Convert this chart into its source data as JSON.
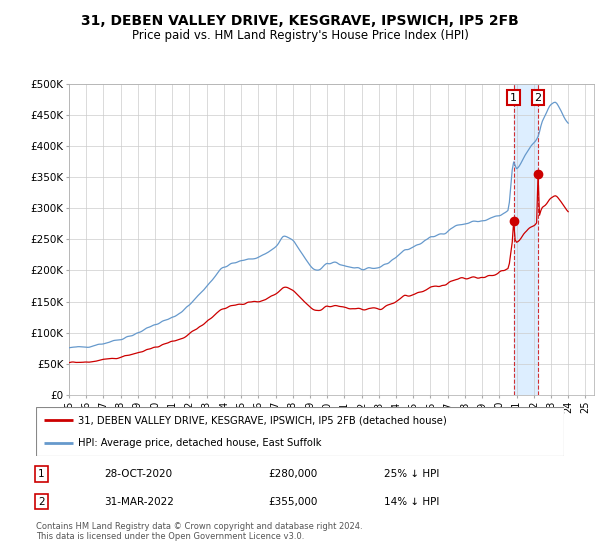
{
  "title": "31, DEBEN VALLEY DRIVE, KESGRAVE, IPSWICH, IP5 2FB",
  "subtitle": "Price paid vs. HM Land Registry's House Price Index (HPI)",
  "ylabel_ticks": [
    "£0",
    "£50K",
    "£100K",
    "£150K",
    "£200K",
    "£250K",
    "£300K",
    "£350K",
    "£400K",
    "£450K",
    "£500K"
  ],
  "ytick_values": [
    0,
    50000,
    100000,
    150000,
    200000,
    250000,
    300000,
    350000,
    400000,
    450000,
    500000
  ],
  "xlim": [
    1995.0,
    2025.5
  ],
  "ylim": [
    0,
    500000
  ],
  "hpi_color": "#6699cc",
  "price_color": "#cc0000",
  "shade_color": "#ddeeff",
  "background_color": "#ffffff",
  "grid_color": "#cccccc",
  "legend_label_red": "31, DEBEN VALLEY DRIVE, KESGRAVE, IPSWICH, IP5 2FB (detached house)",
  "legend_label_blue": "HPI: Average price, detached house, East Suffolk",
  "transaction1_date": "28-OCT-2020",
  "transaction1_price": 280000,
  "transaction1_label": "25% ↓ HPI",
  "transaction1_year": 2020.833,
  "transaction2_date": "31-MAR-2022",
  "transaction2_price": 355000,
  "transaction2_label": "14% ↓ HPI",
  "transaction2_year": 2022.25,
  "footer": "Contains HM Land Registry data © Crown copyright and database right 2024.\nThis data is licensed under the Open Government Licence v3.0.",
  "base_hpi_1996": 52000,
  "base_hpi_t1": 280000,
  "base_hpi_t2": 355000
}
